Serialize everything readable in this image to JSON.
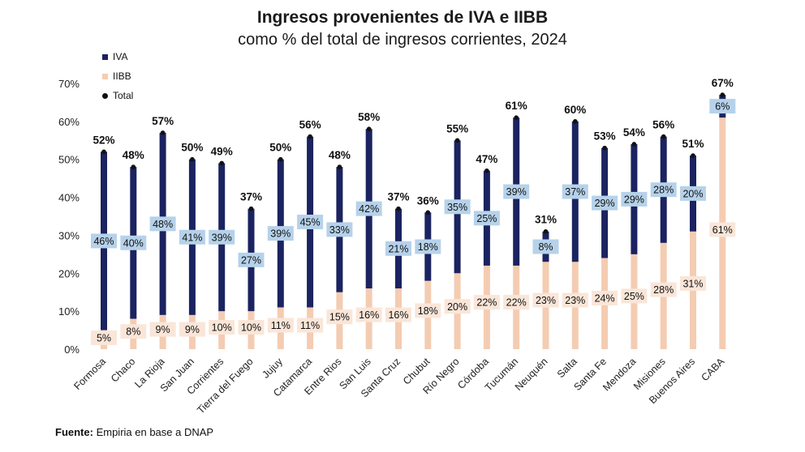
{
  "header": {
    "title": "Ingresos provenientes de IVA e IIBB",
    "subtitle": "como % del total de ingresos corrientes, 2024"
  },
  "legend": [
    {
      "label": "IVA",
      "marker": "square",
      "color": "#1b2360"
    },
    {
      "label": "IIBB",
      "marker": "square",
      "color": "#f4ccb2"
    },
    {
      "label": "Total",
      "marker": "dot",
      "color": "#111111"
    }
  ],
  "footer": {
    "source_label": "Fuente:",
    "source_text": "Empiria en base a DNAP"
  },
  "chart_data": {
    "type": "bar",
    "stacked": true,
    "ylim": [
      0,
      70
    ],
    "yticks": [
      0,
      10,
      20,
      30,
      40,
      50,
      60,
      70
    ],
    "ytick_labels": [
      "0%",
      "10%",
      "20%",
      "30%",
      "40%",
      "50%",
      "60%",
      "70%"
    ],
    "grid": false,
    "legend_position": "top-left",
    "categories": [
      "Formosa",
      "Chaco",
      "La Rioja",
      "San Juan",
      "Corrientes",
      "Tierra del Fuego",
      "Jujuy",
      "Catamarca",
      "Entre Rios",
      "San Luis",
      "Santa Cruz",
      "Chubut",
      "Río Negro",
      "Córdoba",
      "Tucumán",
      "Neuquén",
      "Salta",
      "Santa Fe",
      "Mendoza",
      "Misiones",
      "Buenos Aires",
      "CABA"
    ],
    "series": [
      {
        "name": "IIBB",
        "color": "#f4ccb2",
        "label_bg": "#fae6d8",
        "values": [
          5,
          8,
          9,
          9,
          10,
          10,
          11,
          11,
          15,
          16,
          16,
          18,
          20,
          22,
          22,
          23,
          23,
          24,
          25,
          28,
          31,
          61
        ]
      },
      {
        "name": "IVA",
        "color": "#1b2360",
        "label_bg": "#b6d2ea",
        "values": [
          46,
          40,
          48,
          41,
          39,
          27,
          39,
          45,
          33,
          42,
          21,
          18,
          35,
          25,
          39,
          8,
          37,
          29,
          29,
          28,
          20,
          6
        ]
      }
    ],
    "totals_name": "Total",
    "totals": [
      52,
      48,
      57,
      50,
      49,
      37,
      50,
      56,
      48,
      58,
      37,
      36,
      55,
      47,
      61,
      31,
      60,
      53,
      54,
      56,
      51,
      67
    ],
    "iibb_labels": [
      "5%",
      "8%",
      "9%",
      "9%",
      "10%",
      "10%",
      "11%",
      "11%",
      "15%",
      "16%",
      "16%",
      "18%",
      "20%",
      "22%",
      "22%",
      "23%",
      "23%",
      "24%",
      "25%",
      "28%",
      "31%",
      "61%"
    ],
    "iva_labels": [
      "46%",
      "40%",
      "48%",
      "41%",
      "39%",
      "27%",
      "39%",
      "45%",
      "33%",
      "42%",
      "21%",
      "18%",
      "35%",
      "25%",
      "39%",
      "8%",
      "37%",
      "29%",
      "29%",
      "28%",
      "20%",
      "6%"
    ],
    "total_labels": [
      "52%",
      "48%",
      "57%",
      "50%",
      "49%",
      "37%",
      "50%",
      "56%",
      "48%",
      "58%",
      "37%",
      "36%",
      "55%",
      "47%",
      "61%",
      "31%",
      "60%",
      "53%",
      "54%",
      "56%",
      "51%",
      "67%"
    ]
  }
}
